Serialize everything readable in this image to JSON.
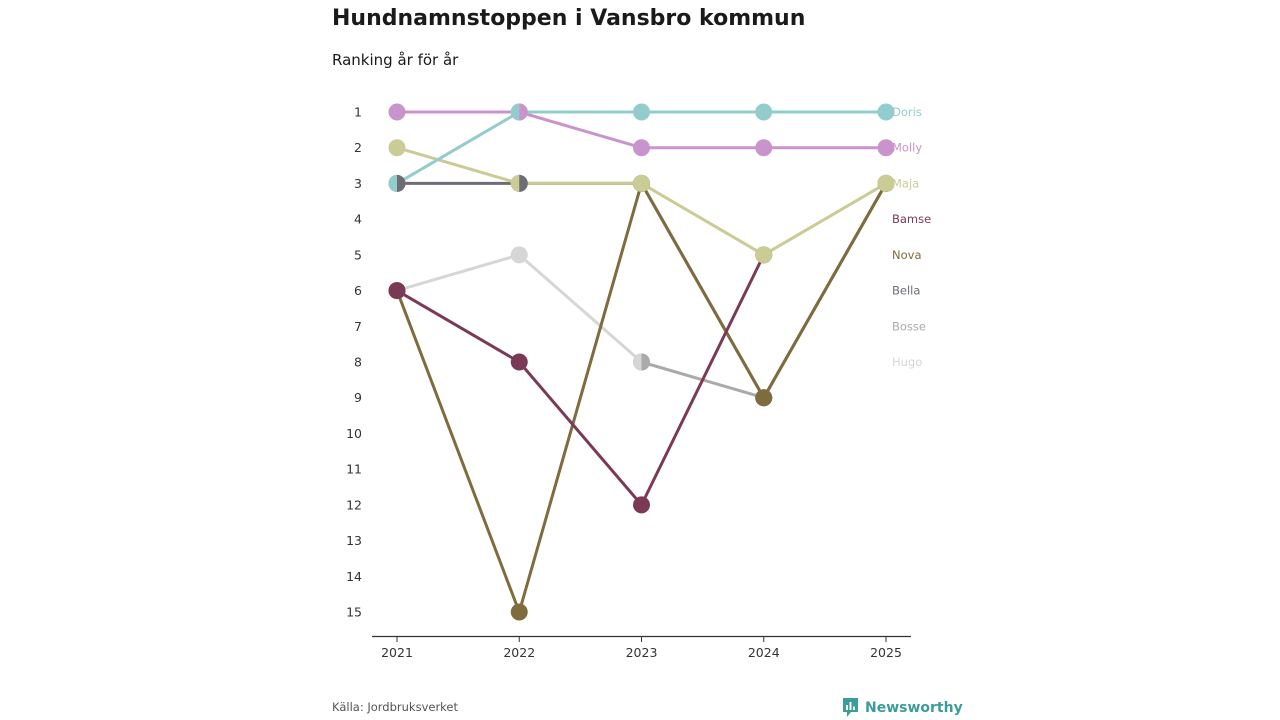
{
  "header": {
    "title": "Hundnamnstoppen i Vansbro kommun",
    "subtitle": "Ranking år för år"
  },
  "footer": {
    "source": "Källa: Jordbruksverket",
    "brand": "Newsworthy"
  },
  "colors": {
    "brand": "#3a9d9a",
    "axis": "#333333",
    "tick_text": "#333333"
  },
  "chart_data": {
    "type": "line",
    "subtype": "bump",
    "title": "Hundnamnstoppen i Vansbro kommun",
    "subtitle": "Ranking år för år",
    "x": [
      2021,
      2022,
      2023,
      2024,
      2025
    ],
    "y_ticks": [
      1,
      2,
      3,
      4,
      5,
      6,
      7,
      8,
      9,
      10,
      11,
      12,
      13,
      14,
      15
    ],
    "ylim": [
      1,
      15
    ],
    "y_inverted": true,
    "grid": false,
    "legend": "end-labels-right",
    "series": [
      {
        "name": "Hugo",
        "color": "#d6d6d6",
        "values": [
          6,
          5,
          8,
          null,
          null
        ]
      },
      {
        "name": "Bosse",
        "color": "#aaaaaa",
        "values": [
          null,
          null,
          8,
          9,
          null
        ]
      },
      {
        "name": "Bella",
        "color": "#6e6d75",
        "values": [
          3,
          3,
          3,
          9,
          3
        ]
      },
      {
        "name": "Nova",
        "color": "#7e6b3e",
        "values": [
          6,
          15,
          3,
          9,
          3
        ]
      },
      {
        "name": "Bamse",
        "color": "#7a3a55",
        "values": [
          6,
          8,
          12,
          5,
          null
        ]
      },
      {
        "name": "Maja",
        "color": "#cbcb96",
        "values": [
          2,
          3,
          3,
          5,
          3
        ]
      },
      {
        "name": "Molly",
        "color": "#c994cc",
        "values": [
          1,
          1,
          2,
          2,
          2
        ]
      },
      {
        "name": "Doris",
        "color": "#93cccc",
        "values": [
          3,
          1,
          1,
          1,
          1
        ]
      }
    ],
    "end_labels": [
      {
        "name": "Doris",
        "rank": 1,
        "color": "#93cccc"
      },
      {
        "name": "Molly",
        "rank": 2,
        "color": "#c994cc"
      },
      {
        "name": "Maja",
        "rank": 3,
        "color": "#cbcb96"
      },
      {
        "name": "Bamse",
        "rank": 4,
        "color": "#7a3a55"
      },
      {
        "name": "Nova",
        "rank": 5,
        "color": "#7e6b3e"
      },
      {
        "name": "Bella",
        "rank": 6,
        "color": "#6e6d75"
      },
      {
        "name": "Bosse",
        "rank": 7,
        "color": "#aaaaaa"
      },
      {
        "name": "Hugo",
        "rank": 8,
        "color": "#d6d6d6"
      }
    ],
    "overlaps": [
      {
        "x": 2021,
        "rank": 3,
        "left": "#93cccc",
        "right": "#6e6d75"
      },
      {
        "x": 2022,
        "rank": 1,
        "left": "#93cccc",
        "right": "#c994cc"
      },
      {
        "x": 2022,
        "rank": 3,
        "left": "#cbcb96",
        "right": "#6e6d75"
      },
      {
        "x": 2023,
        "rank": 8,
        "left": "#d6d6d6",
        "right": "#aaaaaa"
      }
    ]
  }
}
